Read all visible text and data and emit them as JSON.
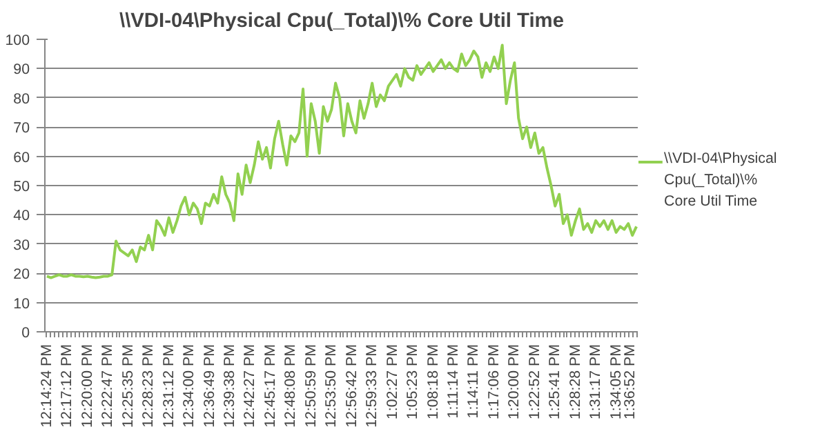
{
  "chart_data": {
    "type": "line",
    "title": "\\\\VDI-04\\Physical Cpu(_Total)\\% Core Util Time",
    "categories": [
      "12:14:24 PM",
      null,
      null,
      null,
      null,
      "12:17:12 PM",
      null,
      null,
      null,
      null,
      "12:20:00 PM",
      null,
      null,
      null,
      null,
      "12:22:47 PM",
      null,
      null,
      null,
      null,
      "12:25:35 PM",
      null,
      null,
      null,
      null,
      "12:28:23 PM",
      null,
      null,
      null,
      null,
      "12:31:12 PM",
      null,
      null,
      null,
      null,
      "12:34:00 PM",
      null,
      null,
      null,
      null,
      "12:36:49 PM",
      null,
      null,
      null,
      null,
      "12:39:38 PM",
      null,
      null,
      null,
      null,
      "12:42:27 PM",
      null,
      null,
      null,
      null,
      "12:45:17 PM",
      null,
      null,
      null,
      null,
      "12:48:08 PM",
      null,
      null,
      null,
      null,
      "12:50:59 PM",
      null,
      null,
      null,
      null,
      "12:53:50 PM",
      null,
      null,
      null,
      null,
      "12:56:42 PM",
      null,
      null,
      null,
      null,
      "12:59:33 PM",
      null,
      null,
      null,
      null,
      "1:02:27 PM",
      null,
      null,
      null,
      null,
      "1:05:23 PM",
      null,
      null,
      null,
      null,
      "1:08:18 PM",
      null,
      null,
      null,
      null,
      "1:11:14 PM",
      null,
      null,
      null,
      null,
      "1:14:11 PM",
      null,
      null,
      null,
      null,
      "1:17:06 PM",
      null,
      null,
      null,
      null,
      "1:20:00 PM",
      null,
      null,
      null,
      null,
      "1:22:52 PM",
      null,
      null,
      null,
      null,
      "1:25:41 PM",
      null,
      null,
      null,
      null,
      "1:28:28 PM",
      null,
      null,
      null,
      null,
      "1:31:17 PM",
      null,
      null,
      null,
      null,
      "1:34:05 PM",
      null,
      null,
      null,
      null,
      "1:36:52 PM"
    ],
    "series": [
      {
        "name": "\\\\VDI-04\\Physical Cpu(_Total)\\% Core Util Time",
        "color": "#92d050",
        "values": [
          19,
          18.5,
          19,
          19.5,
          19,
          19,
          19.5,
          19,
          19,
          18.8,
          19,
          18.7,
          18.5,
          18.7,
          19,
          19,
          19.5,
          31,
          28,
          27,
          26,
          28,
          24,
          29,
          28,
          33,
          28,
          38,
          36,
          33,
          39,
          34,
          38,
          43,
          46,
          40,
          44,
          42,
          37,
          44,
          43,
          47,
          44,
          53,
          47,
          44,
          38,
          54,
          47,
          57,
          51,
          57,
          65,
          59,
          63,
          56,
          66,
          72,
          64,
          57,
          67,
          65,
          68,
          83,
          60,
          78,
          72,
          61,
          77,
          72,
          76,
          85,
          80,
          67,
          78,
          72,
          68,
          79,
          73,
          78,
          85,
          77,
          81,
          79,
          84,
          86,
          88,
          84,
          90,
          87,
          86,
          91,
          88,
          90,
          92,
          89,
          91,
          93,
          90,
          92,
          90,
          89,
          95,
          91,
          93,
          96,
          94,
          87,
          92,
          89,
          94,
          90,
          98,
          78,
          86,
          92,
          73,
          66,
          70,
          63,
          68,
          61,
          63,
          56,
          50,
          43,
          47,
          37,
          40,
          33,
          38,
          42,
          35,
          37,
          34,
          38,
          36,
          38,
          35,
          38,
          34,
          36,
          35,
          37,
          33,
          36
        ]
      }
    ],
    "ylim": [
      0,
      100
    ],
    "yticks": [
      0,
      10,
      20,
      30,
      40,
      50,
      60,
      70,
      80,
      90,
      100
    ],
    "grid": "y",
    "legend": "right"
  }
}
